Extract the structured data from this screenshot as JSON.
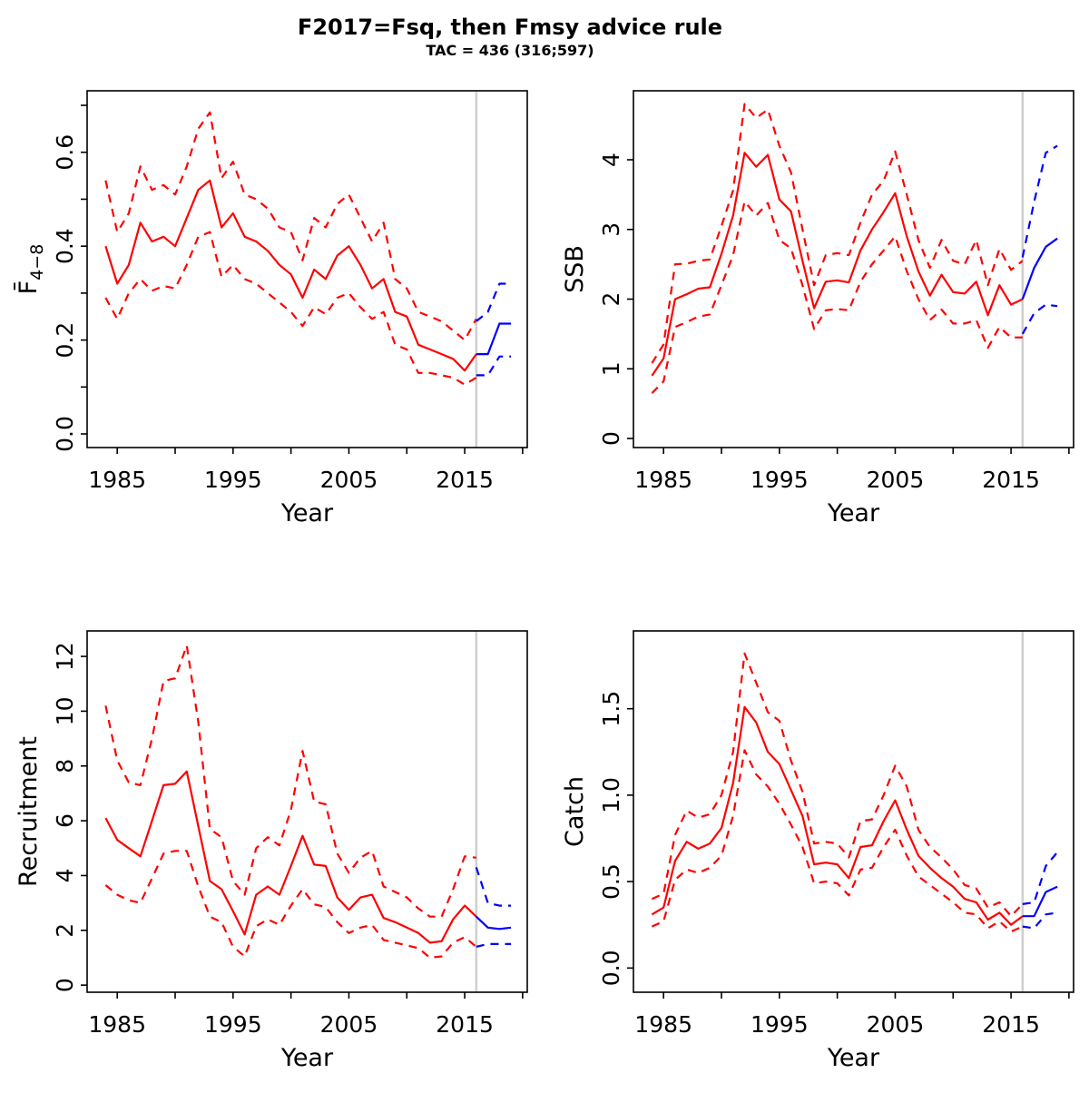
{
  "title": "F2017=Fsq, then  Fmsy advice rule",
  "subtitle": "TAC = 436 (316;597)",
  "colors": {
    "historical": "#ff0000",
    "forecast": "#0000ff",
    "divider": "#cfcfcf",
    "axis": "#000000"
  },
  "chart_data": [
    {
      "type": "line",
      "name": "fishing-mortality",
      "ylabel_main": "F̄",
      "ylabel_sub": "4−8",
      "xlabel": "Year",
      "xlim": [
        1982.4,
        2020.4
      ],
      "ylim": [
        -0.029,
        0.731
      ],
      "xticks": [
        1985,
        1990,
        1995,
        2000,
        2005,
        2010,
        2015,
        2020
      ],
      "xtick_labels": [
        "1985",
        "",
        "1995",
        "",
        "2005",
        "",
        "2015",
        ""
      ],
      "yticks": [
        0,
        0.2,
        0.4,
        0.6
      ],
      "ytick_labels": [
        "0.0",
        "0.2",
        "0.4",
        "0.6"
      ],
      "yticks_minor": [
        0.1,
        0.3,
        0.5,
        0.7
      ],
      "vline_x": 2016,
      "x_historical": [
        1984,
        1985,
        1986,
        1987,
        1988,
        1989,
        1990,
        1991,
        1992,
        1993,
        1994,
        1995,
        1996,
        1997,
        1998,
        1999,
        2000,
        2001,
        2002,
        2003,
        2004,
        2005,
        2006,
        2007,
        2008,
        2009,
        2010,
        2011,
        2012,
        2013,
        2014,
        2015,
        2016
      ],
      "x_forecast": [
        2016,
        2017,
        2018,
        2019
      ],
      "series": [
        {
          "name": "median-historical",
          "period": "historical",
          "style": "solid",
          "values": [
            0.4,
            0.32,
            0.36,
            0.45,
            0.41,
            0.42,
            0.4,
            0.46,
            0.52,
            0.54,
            0.44,
            0.47,
            0.42,
            0.41,
            0.39,
            0.36,
            0.34,
            0.29,
            0.35,
            0.33,
            0.38,
            0.4,
            0.36,
            0.31,
            0.33,
            0.26,
            0.25,
            0.19,
            0.18,
            0.17,
            0.16,
            0.135,
            0.17
          ]
        },
        {
          "name": "upper-ci-historical",
          "period": "historical",
          "style": "dashed",
          "values": [
            0.54,
            0.43,
            0.47,
            0.57,
            0.52,
            0.53,
            0.51,
            0.57,
            0.65,
            0.685,
            0.545,
            0.58,
            0.51,
            0.5,
            0.48,
            0.44,
            0.43,
            0.37,
            0.46,
            0.44,
            0.49,
            0.51,
            0.46,
            0.41,
            0.45,
            0.33,
            0.31,
            0.26,
            0.25,
            0.24,
            0.22,
            0.2,
            0.245
          ]
        },
        {
          "name": "lower-ci-historical",
          "period": "historical",
          "style": "dashed",
          "values": [
            0.29,
            0.245,
            0.3,
            0.33,
            0.305,
            0.315,
            0.31,
            0.36,
            0.42,
            0.43,
            0.335,
            0.36,
            0.33,
            0.32,
            0.3,
            0.28,
            0.26,
            0.23,
            0.27,
            0.255,
            0.29,
            0.3,
            0.27,
            0.245,
            0.26,
            0.19,
            0.18,
            0.13,
            0.13,
            0.125,
            0.12,
            0.105,
            0.12
          ]
        },
        {
          "name": "median-forecast",
          "period": "forecast",
          "style": "solid",
          "values": [
            0.17,
            0.17,
            0.235,
            0.235
          ]
        },
        {
          "name": "upper-ci-forecast",
          "period": "forecast",
          "style": "dashed",
          "values": [
            0.24,
            0.26,
            0.32,
            0.32
          ]
        },
        {
          "name": "lower-ci-forecast",
          "period": "forecast",
          "style": "dashed",
          "values": [
            0.125,
            0.125,
            0.165,
            0.165
          ]
        }
      ]
    },
    {
      "type": "line",
      "name": "ssb",
      "ylabel_main": "SSB",
      "ylabel_sub": "",
      "xlabel": "Year",
      "xlim": [
        1982.4,
        2020.4
      ],
      "ylim": [
        -0.13,
        4.99
      ],
      "xticks": [
        1985,
        1990,
        1995,
        2000,
        2005,
        2010,
        2015,
        2020
      ],
      "xtick_labels": [
        "1985",
        "",
        "1995",
        "",
        "2005",
        "",
        "2015",
        ""
      ],
      "yticks": [
        0,
        1,
        2,
        3,
        4
      ],
      "ytick_labels": [
        "0",
        "1",
        "2",
        "3",
        "4"
      ],
      "yticks_minor": [],
      "vline_x": 2016,
      "x_historical": [
        1984,
        1985,
        1986,
        1987,
        1988,
        1989,
        1990,
        1991,
        1992,
        1993,
        1994,
        1995,
        1996,
        1997,
        1998,
        1999,
        2000,
        2001,
        2002,
        2003,
        2004,
        2005,
        2006,
        2007,
        2008,
        2009,
        2010,
        2011,
        2012,
        2013,
        2014,
        2015,
        2016
      ],
      "x_forecast": [
        2016,
        2017,
        2018,
        2019
      ],
      "series": [
        {
          "name": "median-historical",
          "period": "historical",
          "style": "solid",
          "values": [
            0.9,
            1.15,
            2.0,
            2.07,
            2.15,
            2.17,
            2.65,
            3.2,
            4.1,
            3.9,
            4.07,
            3.43,
            3.26,
            2.55,
            1.87,
            2.25,
            2.27,
            2.24,
            2.7,
            3.0,
            3.25,
            3.52,
            2.9,
            2.4,
            2.05,
            2.35,
            2.1,
            2.08,
            2.25,
            1.77,
            2.2,
            1.92,
            2.0
          ]
        },
        {
          "name": "upper-ci-historical",
          "period": "historical",
          "style": "dashed",
          "values": [
            1.08,
            1.35,
            2.5,
            2.51,
            2.55,
            2.57,
            3.05,
            3.56,
            4.8,
            4.6,
            4.72,
            4.2,
            3.82,
            3.0,
            2.2,
            2.63,
            2.66,
            2.63,
            3.1,
            3.5,
            3.7,
            4.12,
            3.5,
            2.85,
            2.45,
            2.85,
            2.55,
            2.5,
            2.85,
            2.2,
            2.72,
            2.42,
            2.55
          ]
        },
        {
          "name": "lower-ci-historical",
          "period": "historical",
          "style": "dashed",
          "values": [
            0.65,
            0.82,
            1.6,
            1.67,
            1.75,
            1.78,
            2.2,
            2.63,
            3.4,
            3.2,
            3.38,
            2.85,
            2.73,
            2.2,
            1.57,
            1.84,
            1.86,
            1.84,
            2.25,
            2.5,
            2.7,
            2.9,
            2.4,
            2.0,
            1.7,
            1.85,
            1.65,
            1.65,
            1.7,
            1.3,
            1.6,
            1.45,
            1.45
          ]
        },
        {
          "name": "median-forecast",
          "period": "forecast",
          "style": "solid",
          "values": [
            2.0,
            2.45,
            2.75,
            2.87
          ]
        },
        {
          "name": "upper-ci-forecast",
          "period": "forecast",
          "style": "dashed",
          "values": [
            2.6,
            3.4,
            4.1,
            4.2
          ]
        },
        {
          "name": "lower-ci-forecast",
          "period": "forecast",
          "style": "dashed",
          "values": [
            1.5,
            1.8,
            1.92,
            1.9
          ]
        }
      ]
    },
    {
      "type": "line",
      "name": "recruitment",
      "ylabel_main": "Recruitment",
      "ylabel_sub": "",
      "xlabel": "Year",
      "xlim": [
        1982.4,
        2020.4
      ],
      "ylim": [
        -0.26,
        12.93
      ],
      "xticks": [
        1985,
        1990,
        1995,
        2000,
        2005,
        2010,
        2015,
        2020
      ],
      "xtick_labels": [
        "1985",
        "",
        "1995",
        "",
        "2005",
        "",
        "2015",
        ""
      ],
      "yticks": [
        0,
        2,
        4,
        6,
        8,
        10,
        12
      ],
      "ytick_labels": [
        "0",
        "2",
        "4",
        "6",
        "8",
        "10",
        "12"
      ],
      "yticks_minor": [],
      "vline_x": 2016,
      "x_historical": [
        1984,
        1985,
        1986,
        1987,
        1988,
        1989,
        1990,
        1991,
        1992,
        1993,
        1994,
        1995,
        1996,
        1997,
        1998,
        1999,
        2000,
        2001,
        2002,
        2003,
        2004,
        2005,
        2006,
        2007,
        2008,
        2009,
        2010,
        2011,
        2012,
        2013,
        2014,
        2015,
        2016
      ],
      "x_forecast": [
        2016,
        2017,
        2018,
        2019
      ],
      "series": [
        {
          "name": "median-historical",
          "period": "historical",
          "style": "solid",
          "values": [
            6.1,
            5.3,
            5.0,
            4.7,
            6.0,
            7.3,
            7.35,
            7.8,
            5.8,
            3.8,
            3.5,
            2.7,
            1.85,
            3.3,
            3.6,
            3.3,
            4.35,
            5.45,
            4.4,
            4.35,
            3.2,
            2.75,
            3.2,
            3.3,
            2.45,
            2.3,
            2.1,
            1.9,
            1.55,
            1.6,
            2.4,
            2.9,
            2.5
          ]
        },
        {
          "name": "upper-ci-historical",
          "period": "historical",
          "style": "dashed",
          "values": [
            10.2,
            8.2,
            7.4,
            7.3,
            9.0,
            11.1,
            11.2,
            12.4,
            9.6,
            5.7,
            5.4,
            3.8,
            3.3,
            5.0,
            5.4,
            5.1,
            6.4,
            8.55,
            6.7,
            6.6,
            4.8,
            4.1,
            4.65,
            4.9,
            3.6,
            3.4,
            3.2,
            2.8,
            2.5,
            2.5,
            3.5,
            4.7,
            4.65
          ]
        },
        {
          "name": "lower-ci-historical",
          "period": "historical",
          "style": "dashed",
          "values": [
            3.65,
            3.3,
            3.1,
            3.0,
            3.9,
            4.8,
            4.9,
            4.9,
            3.6,
            2.5,
            2.3,
            1.4,
            1.05,
            2.15,
            2.4,
            2.2,
            2.9,
            3.5,
            2.95,
            2.85,
            2.3,
            1.9,
            2.1,
            2.2,
            1.65,
            1.55,
            1.45,
            1.35,
            1.0,
            1.05,
            1.55,
            1.75,
            1.4
          ]
        },
        {
          "name": "median-forecast",
          "period": "forecast",
          "style": "solid",
          "values": [
            2.5,
            2.1,
            2.05,
            2.1
          ]
        },
        {
          "name": "upper-ci-forecast",
          "period": "forecast",
          "style": "dashed",
          "values": [
            4.3,
            3.0,
            2.9,
            2.9
          ]
        },
        {
          "name": "lower-ci-forecast",
          "period": "forecast",
          "style": "dashed",
          "values": [
            1.4,
            1.5,
            1.5,
            1.5
          ]
        }
      ]
    },
    {
      "type": "line",
      "name": "catch",
      "ylabel_main": "Catch",
      "ylabel_sub": "",
      "xlabel": "Year",
      "xlim": [
        1982.4,
        2020.4
      ],
      "ylim": [
        -0.14,
        1.95
      ],
      "xticks": [
        1985,
        1990,
        1995,
        2000,
        2005,
        2010,
        2015,
        2020
      ],
      "xtick_labels": [
        "1985",
        "",
        "1995",
        "",
        "2005",
        "",
        "2015",
        ""
      ],
      "yticks": [
        0,
        0.5,
        1.0,
        1.5
      ],
      "ytick_labels": [
        "0.0",
        "0.5",
        "1.0",
        "1.5"
      ],
      "yticks_minor": [],
      "vline_x": 2016,
      "x_historical": [
        1984,
        1985,
        1986,
        1987,
        1988,
        1989,
        1990,
        1991,
        1992,
        1993,
        1994,
        1995,
        1996,
        1997,
        1998,
        1999,
        2000,
        2001,
        2002,
        2003,
        2004,
        2005,
        2006,
        2007,
        2008,
        2009,
        2010,
        2011,
        2012,
        2013,
        2014,
        2015,
        2016
      ],
      "x_forecast": [
        2016,
        2017,
        2018,
        2019
      ],
      "series": [
        {
          "name": "median-historical",
          "period": "historical",
          "style": "solid",
          "values": [
            0.31,
            0.35,
            0.62,
            0.73,
            0.69,
            0.72,
            0.81,
            1.07,
            1.51,
            1.42,
            1.25,
            1.18,
            1.03,
            0.88,
            0.6,
            0.61,
            0.6,
            0.52,
            0.7,
            0.71,
            0.85,
            0.97,
            0.8,
            0.65,
            0.58,
            0.52,
            0.47,
            0.4,
            0.38,
            0.28,
            0.32,
            0.25,
            0.3
          ]
        },
        {
          "name": "upper-ci-historical",
          "period": "historical",
          "style": "dashed",
          "values": [
            0.4,
            0.43,
            0.77,
            0.91,
            0.87,
            0.89,
            1.0,
            1.25,
            1.82,
            1.65,
            1.48,
            1.43,
            1.2,
            1.02,
            0.72,
            0.73,
            0.72,
            0.64,
            0.85,
            0.86,
            1.0,
            1.17,
            1.05,
            0.8,
            0.7,
            0.64,
            0.57,
            0.48,
            0.46,
            0.35,
            0.38,
            0.3,
            0.37
          ]
        },
        {
          "name": "lower-ci-historical",
          "period": "historical",
          "style": "dashed",
          "values": [
            0.24,
            0.27,
            0.51,
            0.57,
            0.55,
            0.58,
            0.65,
            0.88,
            1.26,
            1.12,
            1.05,
            0.95,
            0.83,
            0.7,
            0.49,
            0.5,
            0.49,
            0.42,
            0.57,
            0.58,
            0.7,
            0.8,
            0.65,
            0.53,
            0.48,
            0.43,
            0.38,
            0.32,
            0.31,
            0.23,
            0.27,
            0.21,
            0.24
          ]
        },
        {
          "name": "median-forecast",
          "period": "forecast",
          "style": "solid",
          "values": [
            0.3,
            0.3,
            0.44,
            0.47
          ]
        },
        {
          "name": "upper-ci-forecast",
          "period": "forecast",
          "style": "dashed",
          "values": [
            0.37,
            0.38,
            0.59,
            0.67
          ]
        },
        {
          "name": "lower-ci-forecast",
          "period": "forecast",
          "style": "dashed",
          "values": [
            0.24,
            0.23,
            0.31,
            0.32
          ]
        }
      ]
    }
  ]
}
